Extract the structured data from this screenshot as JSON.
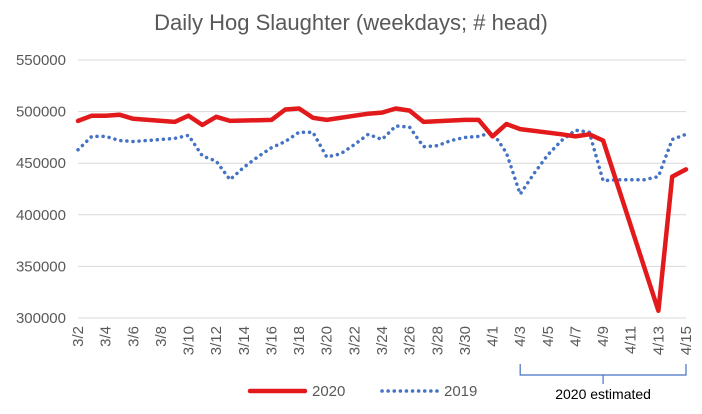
{
  "chart_data": {
    "type": "line",
    "title": "Daily Hog Slaughter (weekdays; # head)",
    "ylim": [
      300000,
      550000
    ],
    "yticks": [
      "550000",
      "500000",
      "450000",
      "400000",
      "350000",
      "300000"
    ],
    "ytick_values": [
      550000,
      500000,
      450000,
      400000,
      350000,
      300000
    ],
    "x_tick_labels": [
      "3/2",
      "3/4",
      "3/6",
      "3/8",
      "3/10",
      "3/12",
      "3/14",
      "3/16",
      "3/18",
      "3/20",
      "3/22",
      "3/24",
      "3/26",
      "3/28",
      "3/30",
      "4/1",
      "4/3",
      "4/5",
      "4/7",
      "4/9",
      "4/11",
      "4/13",
      "4/15"
    ],
    "x": [
      "3/2",
      "3/3",
      "3/4",
      "3/5",
      "3/6",
      "3/7",
      "3/8",
      "3/9",
      "3/10",
      "3/11",
      "3/12",
      "3/13",
      "3/14",
      "3/15",
      "3/16",
      "3/17",
      "3/18",
      "3/19",
      "3/20",
      "3/21",
      "3/22",
      "3/23",
      "3/24",
      "3/25",
      "3/26",
      "3/27",
      "3/28",
      "3/29",
      "3/30",
      "3/31",
      "4/1",
      "4/2",
      "4/3",
      "4/4",
      "4/5",
      "4/6",
      "4/7",
      "4/8",
      "4/9",
      "4/10",
      "4/11",
      "4/12",
      "4/13",
      "4/14",
      "4/15"
    ],
    "series": [
      {
        "name": "2020",
        "color": "#e31a1c",
        "style": "solid",
        "points": [
          [
            "3/2",
            491000
          ],
          [
            "3/3",
            496000
          ],
          [
            "3/4",
            496000
          ],
          [
            "3/5",
            497000
          ],
          [
            "3/6",
            493000
          ],
          [
            "3/9",
            490000
          ],
          [
            "3/10",
            496000
          ],
          [
            "3/11",
            487000
          ],
          [
            "3/12",
            495000
          ],
          [
            "3/13",
            491000
          ],
          [
            "3/16",
            492000
          ],
          [
            "3/17",
            502000
          ],
          [
            "3/18",
            503000
          ],
          [
            "3/19",
            494000
          ],
          [
            "3/20",
            492000
          ],
          [
            "3/23",
            498000
          ],
          [
            "3/24",
            499000
          ],
          [
            "3/25",
            503000
          ],
          [
            "3/26",
            501000
          ],
          [
            "3/27",
            490000
          ],
          [
            "3/30",
            492000
          ],
          [
            "3/31",
            492000
          ],
          [
            "4/1",
            476000
          ],
          [
            "4/2",
            488000
          ],
          [
            "4/3",
            483000
          ],
          [
            "4/6",
            478000
          ],
          [
            "4/7",
            476000
          ],
          [
            "4/8",
            478000
          ],
          [
            "4/9",
            472000
          ],
          [
            "4/13",
            307000
          ],
          [
            "4/14",
            437000
          ],
          [
            "4/15",
            444000
          ]
        ]
      },
      {
        "name": "2019",
        "color": "#4472c4",
        "style": "dotted",
        "points": [
          [
            "3/2",
            463000
          ],
          [
            "3/3",
            476000
          ],
          [
            "3/4",
            476000
          ],
          [
            "3/5",
            472000
          ],
          [
            "3/6",
            471000
          ],
          [
            "3/7",
            472000
          ],
          [
            "3/8",
            473000
          ],
          [
            "3/9",
            474000
          ],
          [
            "3/10",
            477000
          ],
          [
            "3/11",
            457000
          ],
          [
            "3/12",
            452000
          ],
          [
            "3/13",
            434000
          ],
          [
            "3/14",
            446000
          ],
          [
            "3/15",
            456000
          ],
          [
            "3/16",
            465000
          ],
          [
            "3/17",
            471000
          ],
          [
            "3/18",
            480000
          ],
          [
            "3/19",
            480000
          ],
          [
            "3/20",
            456000
          ],
          [
            "3/21",
            459000
          ],
          [
            "3/22",
            468000
          ],
          [
            "3/23",
            478000
          ],
          [
            "3/24",
            473000
          ],
          [
            "3/25",
            486000
          ],
          [
            "3/26",
            485000
          ],
          [
            "3/27",
            466000
          ],
          [
            "3/28",
            467000
          ],
          [
            "3/29",
            472000
          ],
          [
            "3/30",
            475000
          ],
          [
            "3/31",
            476000
          ],
          [
            "4/1",
            480000
          ],
          [
            "4/2",
            460000
          ],
          [
            "4/3",
            420000
          ],
          [
            "4/4",
            440000
          ],
          [
            "4/5",
            458000
          ],
          [
            "4/6",
            472000
          ],
          [
            "4/7",
            482000
          ],
          [
            "4/8",
            480000
          ],
          [
            "4/9",
            433000
          ],
          [
            "4/10",
            434000
          ],
          [
            "4/11",
            434000
          ],
          [
            "4/12",
            434000
          ],
          [
            "4/13",
            437000
          ],
          [
            "4/14",
            473000
          ],
          [
            "4/15",
            478000
          ]
        ]
      }
    ],
    "grid": "horizontal",
    "legend": "bottom",
    "annotation": {
      "text": "2020 estimated",
      "from": "4/3",
      "to": "4/15"
    }
  }
}
